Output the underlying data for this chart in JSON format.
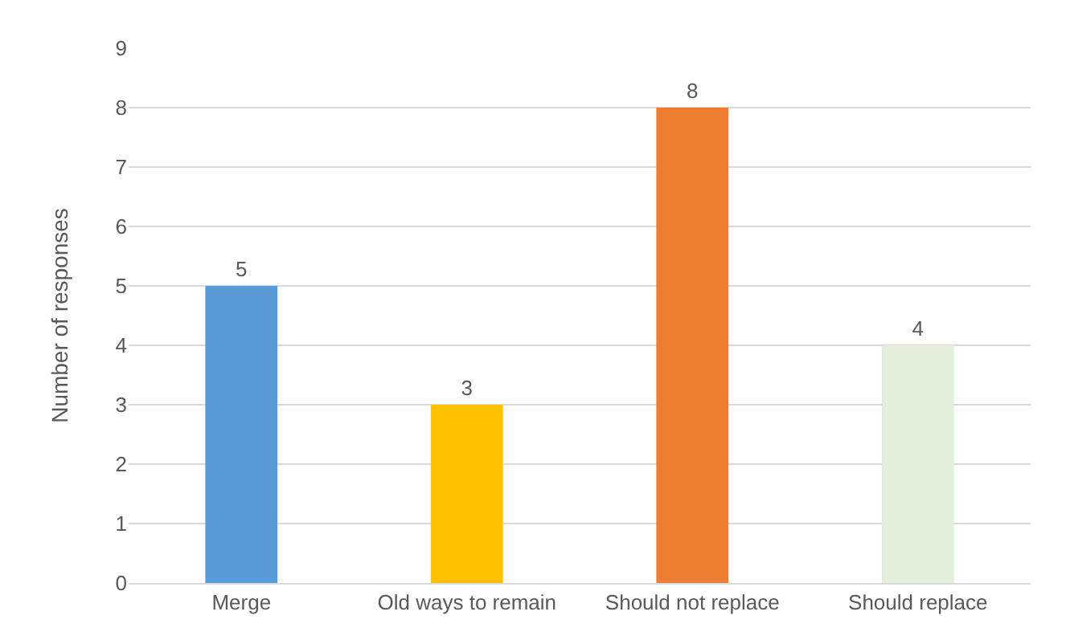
{
  "chart_data": {
    "type": "bar",
    "ylabel": "Number of responses",
    "categories": [
      "Merge",
      "Old ways to remain",
      "Should not replace",
      "Should replace"
    ],
    "values": [
      5,
      3,
      8,
      4
    ],
    "colors": [
      "#5b9bd5",
      "#ffc000",
      "#ed7d31",
      "#e2efda"
    ],
    "ylim": [
      0,
      9
    ],
    "yticks": [
      0,
      1,
      2,
      3,
      4,
      5,
      6,
      7,
      8,
      9
    ],
    "grid": "y",
    "data_labels": true
  }
}
